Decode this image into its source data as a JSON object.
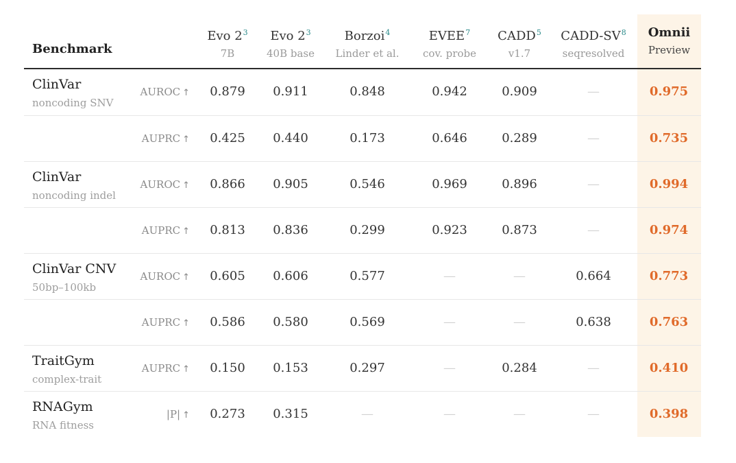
{
  "header": {
    "benchmark": "Benchmark",
    "columns": [
      {
        "name": "Evo 2",
        "sup": "3",
        "sub": "7B"
      },
      {
        "name": "Evo 2",
        "sup": "3",
        "sub": "40B base"
      },
      {
        "name": "Borzoi",
        "sup": "4",
        "sub": "Linder et al."
      },
      {
        "name": "EVEE",
        "sup": "7",
        "sub": "cov. probe"
      },
      {
        "name": "CADD",
        "sup": "5",
        "sub": "v1.7"
      },
      {
        "name": "CADD-SV",
        "sup": "8",
        "sub": "seqresolved"
      },
      {
        "name": "Omnii",
        "sup": "",
        "sub": "Preview"
      }
    ]
  },
  "arrow": "↑",
  "dash": "—",
  "rows": [
    {
      "bench": "ClinVar",
      "bench_sub": "noncoding SNV",
      "metric": "AUROC",
      "values": [
        "0.879",
        "0.911",
        "0.848",
        "0.942",
        "0.909",
        "—",
        "0.975"
      ]
    },
    {
      "bench": "",
      "bench_sub": "",
      "metric": "AUPRC",
      "values": [
        "0.425",
        "0.440",
        "0.173",
        "0.646",
        "0.289",
        "—",
        "0.735"
      ]
    },
    {
      "bench": "ClinVar",
      "bench_sub": "noncoding indel",
      "metric": "AUROC",
      "values": [
        "0.866",
        "0.905",
        "0.546",
        "0.969",
        "0.896",
        "—",
        "0.994"
      ]
    },
    {
      "bench": "",
      "bench_sub": "",
      "metric": "AUPRC",
      "values": [
        "0.813",
        "0.836",
        "0.299",
        "0.923",
        "0.873",
        "—",
        "0.974"
      ]
    },
    {
      "bench": "ClinVar CNV",
      "bench_sub": "50bp–100kb",
      "metric": "AUROC",
      "values": [
        "0.605",
        "0.606",
        "0.577",
        "—",
        "—",
        "0.664",
        "0.773"
      ]
    },
    {
      "bench": "",
      "bench_sub": "",
      "metric": "AUPRC",
      "values": [
        "0.586",
        "0.580",
        "0.569",
        "—",
        "—",
        "0.638",
        "0.763"
      ]
    },
    {
      "bench": "TraitGym",
      "bench_sub": "complex-trait",
      "metric": "AUPRC",
      "values": [
        "0.150",
        "0.153",
        "0.297",
        "—",
        "0.284",
        "—",
        "0.410"
      ]
    },
    {
      "bench": "RNAGym",
      "bench_sub": "RNA fitness",
      "metric": "|P|",
      "values": [
        "0.273",
        "0.315",
        "—",
        "—",
        "—",
        "—",
        "0.398"
      ]
    }
  ],
  "colors": {
    "accent": "#e06a2a",
    "highlight_bg": "#fdf4e7",
    "sup": "#2b8a8a"
  }
}
